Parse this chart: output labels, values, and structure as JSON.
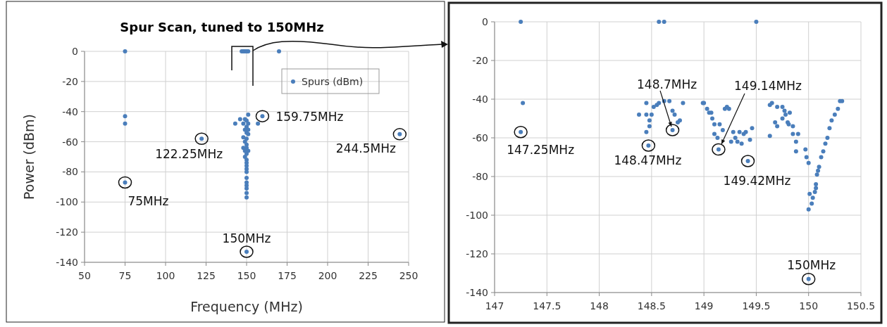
{
  "chart_data": [
    {
      "type": "scatter",
      "title": "Spur Scan, tuned to 150MHz",
      "xlabel": "Frequency (MHz)",
      "ylabel": "Power (dBm)",
      "xlim": [
        50,
        250
      ],
      "ylim": [
        -140,
        0
      ],
      "xticks": [
        50,
        75,
        100,
        125,
        150,
        175,
        200,
        225,
        250
      ],
      "yticks": [
        -140,
        -120,
        -100,
        -80,
        -60,
        -40,
        -20,
        0
      ],
      "grid": true,
      "legend": "top right",
      "marker": "circle",
      "series": [
        {
          "name": "Spurs (dBm)",
          "color": "#4a7ebb",
          "x": [
            75,
            75,
            75,
            75,
            122.25,
            147,
            148,
            149,
            150,
            151,
            170,
            143,
            146,
            157,
            159.75,
            244.5,
            150,
            148,
            151,
            149,
            150,
            151,
            150,
            149,
            150,
            151,
            150,
            149,
            150,
            150,
            151,
            150,
            149,
            150,
            150,
            150,
            150,
            150,
            150,
            150,
            150,
            150,
            148,
            148,
            149,
            151,
            150,
            150
          ],
          "values": [
            0,
            -43,
            -48,
            -87,
            -58,
            0,
            0,
            0,
            0,
            0,
            0,
            -48,
            -45,
            -48,
            -43,
            -55,
            -133,
            -57,
            -42,
            -45,
            -46,
            -48,
            -50,
            -52,
            -54,
            -55,
            -58,
            -60,
            -62,
            -64,
            -66,
            -68,
            -70,
            -72,
            -74,
            -76,
            -78,
            -80,
            -84,
            -87,
            -89,
            -91,
            -64,
            -48,
            -66,
            -52,
            -94,
            -97
          ]
        }
      ],
      "annotations": [
        {
          "text": "75MHz",
          "x": 75,
          "y": -87
        },
        {
          "text": "122.25MHz",
          "x": 122.25,
          "y": -58
        },
        {
          "text": "159.75MHz",
          "x": 159.75,
          "y": -43
        },
        {
          "text": "244.5MHz",
          "x": 244.5,
          "y": -55
        },
        {
          "text": "150MHz",
          "x": 150,
          "y": -133
        }
      ]
    },
    {
      "type": "scatter",
      "xlim": [
        147,
        150.5
      ],
      "ylim": [
        -140,
        0
      ],
      "xticks": [
        147,
        147.5,
        148,
        148.5,
        149,
        149.5,
        150,
        150.5
      ],
      "yticks": [
        -140,
        -120,
        -100,
        -80,
        -60,
        -40,
        -20,
        0
      ],
      "grid": true,
      "marker": "circle",
      "series": [
        {
          "color": "#4a7ebb",
          "x": [
            147.25,
            147.27,
            147.25,
            148.57,
            148.62,
            149.5,
            148.38,
            148.45,
            148.45,
            148.5,
            148.48,
            148.48,
            148.45,
            148.47,
            148.52,
            148.55,
            148.57,
            148.62,
            148.67,
            148.7,
            148.72,
            148.75,
            148.77,
            148.8,
            148.7,
            148.99,
            149.0,
            149.03,
            149.05,
            149.07,
            149.08,
            149.1,
            149.1,
            149.13,
            149.14,
            149.15,
            149.18,
            149.2,
            149.22,
            149.24,
            149.26,
            149.28,
            149.3,
            149.32,
            149.34,
            149.36,
            149.38,
            149.4,
            149.42,
            149.44,
            149.46,
            149.63,
            149.65,
            149.68,
            149.7,
            149.7,
            149.75,
            149.77,
            149.75,
            149.78,
            149.8,
            149.82,
            149.81,
            149.85,
            149.63,
            149.85,
            149.88,
            149.88,
            149.9,
            149.97,
            149.98,
            150.0,
            150.0,
            150.01,
            150.03,
            150.04,
            150.06,
            150.07,
            150.08,
            150.1,
            150.12,
            150.14,
            150.16,
            150.18,
            150.2,
            150.22,
            150.25,
            150.28,
            150.3,
            150.32,
            150.07,
            150.09,
            150.0
          ],
          "values": [
            0,
            -42,
            -57,
            0,
            0,
            0,
            -48,
            -42,
            -48,
            -48,
            -51,
            -54,
            -57,
            -64,
            -44,
            -43,
            -42,
            -41,
            -41,
            -46,
            -48,
            -52,
            -51,
            -42,
            -56,
            -42,
            -42,
            -45,
            -47,
            -47,
            -50,
            -53,
            -58,
            -60,
            -66,
            -53,
            -56,
            -45,
            -44,
            -45,
            -62,
            -57,
            -60,
            -62,
            -57,
            -63,
            -58,
            -57,
            -72,
            -61,
            -55,
            -43,
            -42,
            -52,
            -44,
            -54,
            -44,
            -46,
            -50,
            -48,
            -52,
            -47,
            -53,
            -54,
            -59,
            -58,
            -67,
            -62,
            -58,
            -66,
            -70,
            -73,
            -97,
            -89,
            -94,
            -91,
            -88,
            -84,
            -79,
            -75,
            -70,
            -67,
            -63,
            -60,
            -55,
            -51,
            -48,
            -45,
            -41,
            -41,
            -86,
            -77,
            -133
          ]
        }
      ],
      "annotations": [
        {
          "text": "147.25MHz",
          "x": 147.25,
          "y": -57
        },
        {
          "text": "148.47MHz",
          "x": 148.47,
          "y": -64
        },
        {
          "text": "148.7MHz",
          "x": 148.7,
          "y": -56
        },
        {
          "text": "149.14MHz",
          "x": 149.14,
          "y": -66
        },
        {
          "text": "149.42MHz",
          "x": 149.42,
          "y": -72
        },
        {
          "text": "150MHz",
          "x": 150,
          "y": -133
        }
      ]
    }
  ]
}
